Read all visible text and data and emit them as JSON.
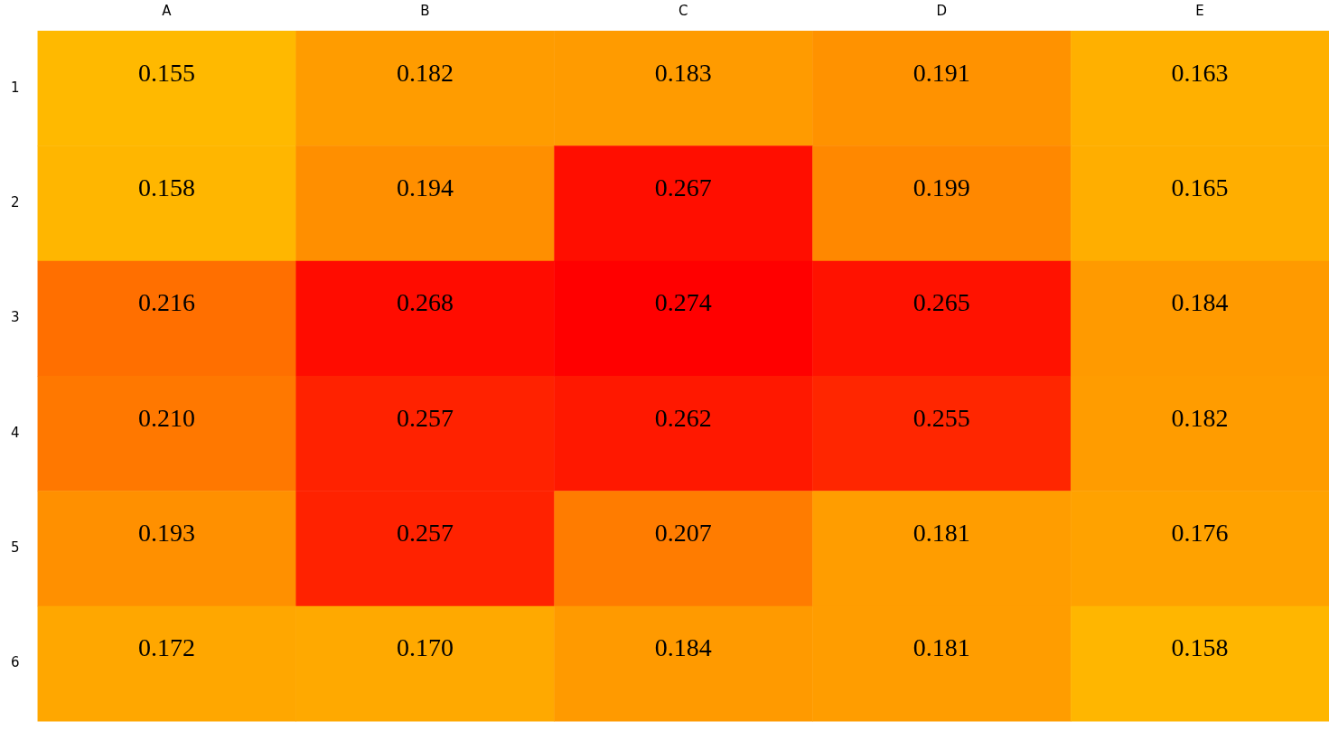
{
  "chart_data": {
    "type": "heatmap",
    "categories": [
      "A",
      "B",
      "C",
      "D",
      "E"
    ],
    "y_categories": [
      "1",
      "2",
      "3",
      "4",
      "5",
      "6"
    ],
    "cells": [
      [
        0.155,
        0.182,
        0.183,
        0.191,
        0.163
      ],
      [
        0.158,
        0.194,
        0.267,
        0.199,
        0.165
      ],
      [
        0.216,
        0.268,
        0.274,
        0.265,
        0.184
      ],
      [
        0.21,
        0.257,
        0.262,
        0.255,
        0.182
      ],
      [
        0.193,
        0.257,
        0.207,
        0.181,
        0.176
      ],
      [
        0.172,
        0.17,
        0.184,
        0.181,
        0.158
      ]
    ],
    "cell_labels": [
      [
        "0.155",
        "0.182",
        "0.183",
        "0.191",
        "0.163"
      ],
      [
        "0.158",
        "0.194",
        "0.267",
        "0.199",
        "0.165"
      ],
      [
        "0.216",
        "0.268",
        "0.274",
        "0.265",
        "0.184"
      ],
      [
        "0.210",
        "0.257",
        "0.262",
        "0.255",
        "0.182"
      ],
      [
        "0.193",
        "0.257",
        "0.207",
        "0.181",
        "0.176"
      ],
      [
        "0.172",
        "0.170",
        "0.184",
        "0.181",
        "0.158"
      ]
    ]
  }
}
